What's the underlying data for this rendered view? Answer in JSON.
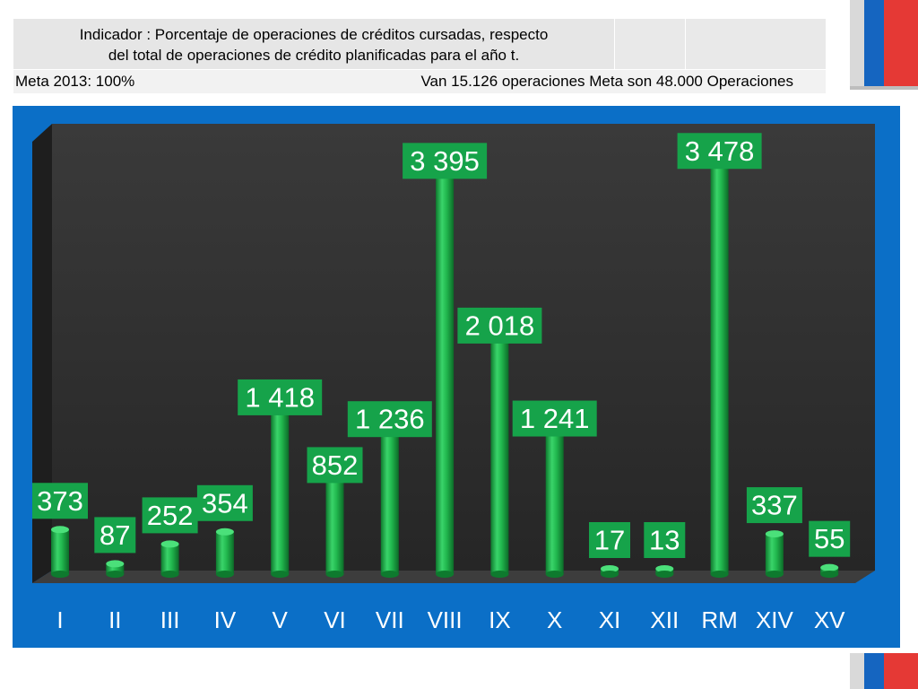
{
  "header": {
    "indicator_line1": "Indicador :    Porcentaje de operaciones de créditos cursadas, respecto",
    "indicator_line2": "del total de operaciones de crédito planificadas para el año t.",
    "meta_left": "Meta 2013: 100%",
    "meta_right": "Van 15.126 operaciones  Meta son 48.000 Operaciones"
  },
  "colors": {
    "frame": "#0b6fc7",
    "plot_bg": "#2e2e2e",
    "bar": "#1fb34a",
    "label_bg": "#16a34a",
    "flag_red": "#e53935",
    "flag_blue": "#1565c0"
  },
  "chart_data": {
    "type": "bar",
    "categories": [
      "I",
      "II",
      "III",
      "IV",
      "V",
      "VI",
      "VII",
      "VIII",
      "IX",
      "X",
      "XI",
      "XII",
      "RM",
      "XIV",
      "XV"
    ],
    "values": [
      373,
      87,
      252,
      354,
      1418,
      852,
      1236,
      3395,
      2018,
      1241,
      17,
      13,
      3478,
      337,
      55
    ],
    "value_labels": [
      "373",
      "87",
      "252",
      "354",
      "1 418",
      "852",
      "1 236",
      "3 395",
      "2 018",
      "1 241",
      "17",
      "13",
      "3 478",
      "337",
      "55"
    ],
    "title": "",
    "xlabel": "",
    "ylabel": "",
    "ylim": [
      0,
      3600
    ],
    "grid": false,
    "legend": "none"
  }
}
